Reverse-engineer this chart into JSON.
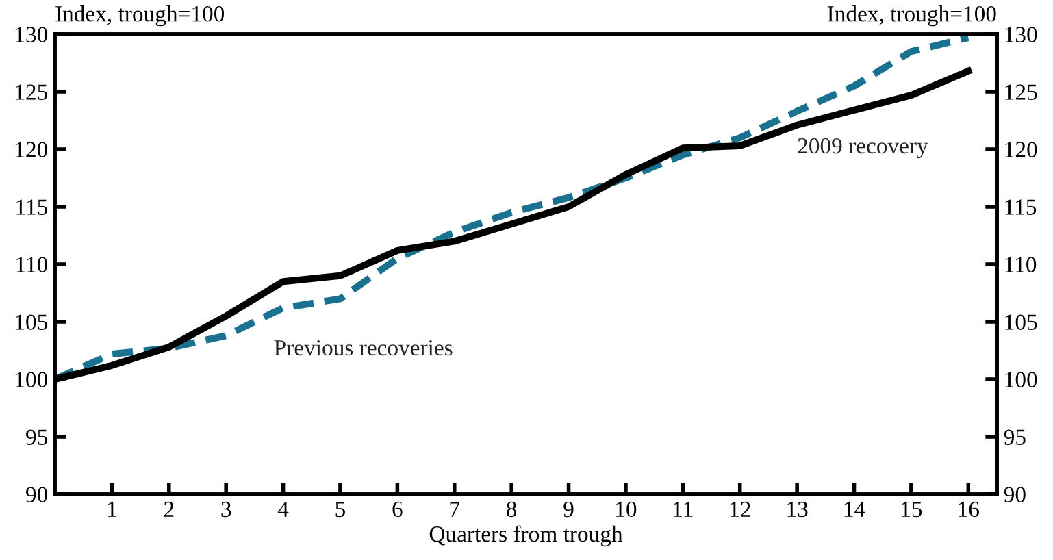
{
  "chart_data": {
    "type": "line",
    "xlabel": "Quarters from trough",
    "ylabel": "Index, trough=100",
    "y2label": "Index, trough=100",
    "x": [
      0,
      1,
      2,
      3,
      4,
      5,
      6,
      7,
      8,
      9,
      10,
      11,
      12,
      13,
      14,
      15,
      16
    ],
    "series": [
      {
        "name": "2009 recovery",
        "color": "#000000",
        "line_style": "solid",
        "values": [
          100,
          101.2,
          102.8,
          105.5,
          108.5,
          109,
          111.2,
          112,
          113.5,
          115,
          117.8,
          120.1,
          120.3,
          122.1,
          123.4,
          124.7,
          126.8
        ]
      },
      {
        "name": "Previous recoveries",
        "color": "#1a7290",
        "line_style": "dashed",
        "values": [
          100,
          102.2,
          102.7,
          103.8,
          106.2,
          107,
          110.5,
          112.8,
          114.5,
          115.8,
          117.5,
          119.5,
          121,
          123.3,
          125.5,
          128.5,
          129.7
        ]
      }
    ],
    "xlim": [
      0,
      16.5
    ],
    "xticks": [
      1,
      2,
      3,
      4,
      5,
      6,
      7,
      8,
      9,
      10,
      11,
      12,
      13,
      14,
      15,
      16
    ],
    "ylim": [
      90,
      130
    ],
    "yticks": [
      90,
      95,
      100,
      105,
      110,
      115,
      120,
      125,
      130
    ],
    "y2lim": [
      90,
      130
    ],
    "y2ticks": [
      90,
      95,
      100,
      105,
      110,
      115,
      120,
      125,
      130
    ],
    "grid": false,
    "legend": false,
    "marker": "none"
  }
}
